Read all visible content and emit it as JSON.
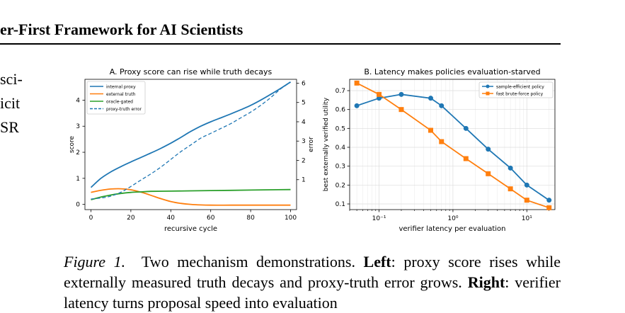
{
  "header": {
    "running_title": "er-First Framework for AI Scientists"
  },
  "left_column": {
    "lines": [
      "sci-",
      "icit",
      "SR"
    ]
  },
  "caption": {
    "label": "Figure 1.",
    "part1": "Two mechanism demonstrations.",
    "left_label": "Left",
    "part2": ": proxy score rises while externally measured truth decays and proxy-truth error grows.",
    "right_label": "Right",
    "part3": ": verifier latency turns proposal speed into evaluation"
  },
  "chart_data": [
    {
      "type": "line",
      "title": "A. Proxy score can rise while truth decays",
      "xlabel": "recursive cycle",
      "ylabel": "score",
      "y2label": "error",
      "xlim": [
        -3,
        103
      ],
      "ylim": [
        -0.2,
        4.8
      ],
      "y2lim": [
        -0.55,
        6.2
      ],
      "xticks": [
        0,
        20,
        40,
        60,
        80,
        100
      ],
      "yticks": [
        0,
        1,
        2,
        3,
        4
      ],
      "y2ticks": [
        1,
        2,
        3,
        4,
        5,
        6
      ],
      "grid": false,
      "legend": "top-left",
      "series": [
        {
          "name": "internal proxy",
          "axis": "left",
          "style": "solid",
          "color": "#1f77b4",
          "x": [
            0,
            5,
            10,
            15,
            20,
            25,
            30,
            35,
            40,
            45,
            50,
            55,
            60,
            65,
            70,
            75,
            80,
            85,
            90,
            95,
            100
          ],
          "y": [
            0.65,
            1.0,
            1.25,
            1.45,
            1.63,
            1.8,
            1.97,
            2.15,
            2.35,
            2.57,
            2.8,
            3.0,
            3.17,
            3.32,
            3.47,
            3.63,
            3.8,
            4.0,
            4.22,
            4.45,
            4.7
          ]
        },
        {
          "name": "external truth",
          "axis": "left",
          "style": "solid",
          "color": "#ff7f0e",
          "x": [
            0,
            5,
            10,
            15,
            20,
            25,
            30,
            35,
            40,
            45,
            50,
            55,
            60,
            70,
            80,
            90,
            100
          ],
          "y": [
            0.46,
            0.54,
            0.59,
            0.6,
            0.56,
            0.47,
            0.35,
            0.22,
            0.11,
            0.04,
            0.0,
            -0.02,
            -0.03,
            -0.03,
            -0.03,
            -0.03,
            -0.03
          ]
        },
        {
          "name": "oracle-gated",
          "axis": "left",
          "style": "solid",
          "color": "#2ca02c",
          "x": [
            0,
            5,
            10,
            15,
            20,
            25,
            30,
            40,
            50,
            60,
            70,
            80,
            90,
            100
          ],
          "y": [
            0.18,
            0.28,
            0.36,
            0.42,
            0.46,
            0.48,
            0.5,
            0.51,
            0.52,
            0.53,
            0.54,
            0.55,
            0.56,
            0.57
          ]
        },
        {
          "name": "proxy-truth error",
          "axis": "right",
          "style": "dashed",
          "color": "#1f77b4",
          "x": [
            0,
            5,
            10,
            15,
            20,
            25,
            30,
            35,
            40,
            45,
            50,
            55,
            60,
            65,
            70,
            75,
            80,
            85,
            90,
            95,
            100
          ],
          "y": [
            0.0,
            0.05,
            0.15,
            0.35,
            0.65,
            0.98,
            1.3,
            1.65,
            2.05,
            2.45,
            2.8,
            3.15,
            3.4,
            3.65,
            3.9,
            4.2,
            4.5,
            4.85,
            5.25,
            5.7,
            6.05
          ]
        }
      ]
    },
    {
      "type": "line",
      "title": "B. Latency makes policies evaluation-starved",
      "xlabel": "verifier latency per evaluation",
      "ylabel": "best externally verified utility",
      "xscale": "log",
      "xlim": [
        0.04,
        24
      ],
      "ylim": [
        0.07,
        0.76
      ],
      "xticks": [
        0.1,
        1,
        10
      ],
      "xticklabels": [
        "10⁻¹",
        "10⁰",
        "10¹"
      ],
      "yticks": [
        0.1,
        0.2,
        0.3,
        0.4,
        0.5,
        0.6,
        0.7
      ],
      "grid": true,
      "legend": "top-right",
      "series": [
        {
          "name": "sample-efficient policy",
          "marker": "circle",
          "color": "#1f77b4",
          "x": [
            0.05,
            0.1,
            0.2,
            0.5,
            0.7,
            1.5,
            3,
            6,
            10,
            20
          ],
          "y": [
            0.62,
            0.66,
            0.68,
            0.66,
            0.62,
            0.5,
            0.39,
            0.29,
            0.2,
            0.12
          ]
        },
        {
          "name": "fast brute-force policy",
          "marker": "square",
          "color": "#ff7f0e",
          "x": [
            0.05,
            0.1,
            0.2,
            0.5,
            0.7,
            1.5,
            3,
            6,
            10,
            20
          ],
          "y": [
            0.74,
            0.68,
            0.6,
            0.49,
            0.43,
            0.34,
            0.26,
            0.18,
            0.12,
            0.08
          ]
        }
      ]
    }
  ]
}
